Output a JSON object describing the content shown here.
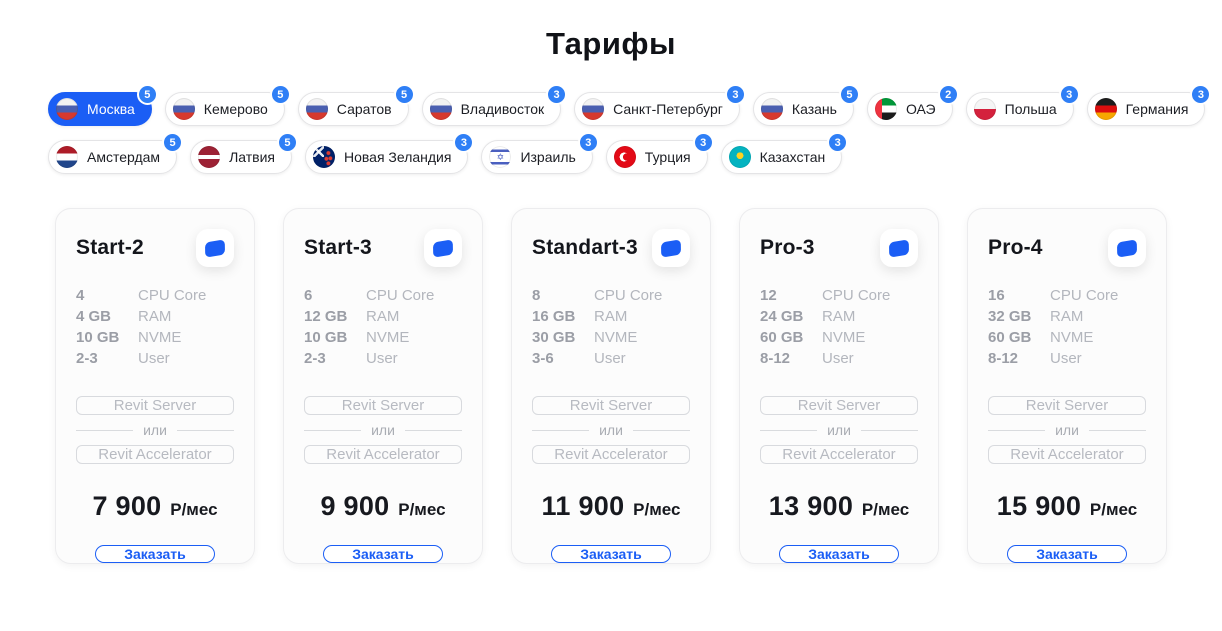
{
  "colors": {
    "accent": "#1b5ef5",
    "badge": "#2f7ff6"
  },
  "title": "Тарифы",
  "filters": {
    "rows": [
      [
        {
          "label": "Москва",
          "count": "5",
          "flag": "ru",
          "active": true
        },
        {
          "label": "Кемерово",
          "count": "5",
          "flag": "ru",
          "active": false
        },
        {
          "label": "Саратов",
          "count": "5",
          "flag": "ru",
          "active": false
        },
        {
          "label": "Владивосток",
          "count": "3",
          "flag": "ru",
          "active": false
        },
        {
          "label": "Санкт-Петербург",
          "count": "3",
          "flag": "ru",
          "active": false
        },
        {
          "label": "Казань",
          "count": "5",
          "flag": "ru",
          "active": false
        },
        {
          "label": "ОАЭ",
          "count": "2",
          "flag": "ae",
          "active": false
        },
        {
          "label": "Польша",
          "count": "3",
          "flag": "pl",
          "active": false
        },
        {
          "label": "Германия",
          "count": "3",
          "flag": "de",
          "active": false
        }
      ],
      [
        {
          "label": "Амстердам",
          "count": "5",
          "flag": "nl",
          "active": false
        },
        {
          "label": "Латвия",
          "count": "5",
          "flag": "lv",
          "active": false
        },
        {
          "label": "Новая Зеландия",
          "count": "3",
          "flag": "nz",
          "active": false
        },
        {
          "label": "Израиль",
          "count": "3",
          "flag": "il",
          "active": false
        },
        {
          "label": "Турция",
          "count": "3",
          "flag": "tr",
          "active": false
        },
        {
          "label": "Казахстан",
          "count": "3",
          "flag": "kz",
          "active": false
        }
      ]
    ]
  },
  "plans": {
    "spec_labels": [
      "CPU Core",
      "RAM",
      "NVME",
      "User"
    ],
    "options": [
      "Revit Server",
      "Revit Accelerator"
    ],
    "or_label": "или",
    "price_unit": "Р/мес",
    "cta_label": "Заказать",
    "items": [
      {
        "name": "Start-2",
        "specs": [
          "4",
          "4 GB",
          "10 GB",
          "2-3"
        ],
        "price": "7 900"
      },
      {
        "name": "Start-3",
        "specs": [
          "6",
          "12 GB",
          "10 GB",
          "2-3"
        ],
        "price": "9 900"
      },
      {
        "name": "Standart-3",
        "specs": [
          "8",
          "16 GB",
          "30 GB",
          "3-6"
        ],
        "price": "11 900"
      },
      {
        "name": "Pro-3",
        "specs": [
          "12",
          "24 GB",
          "60 GB",
          "8-12"
        ],
        "price": "13 900"
      },
      {
        "name": "Pro-4",
        "specs": [
          "16",
          "32 GB",
          "60 GB",
          "8-12"
        ],
        "price": "15 900"
      }
    ]
  }
}
